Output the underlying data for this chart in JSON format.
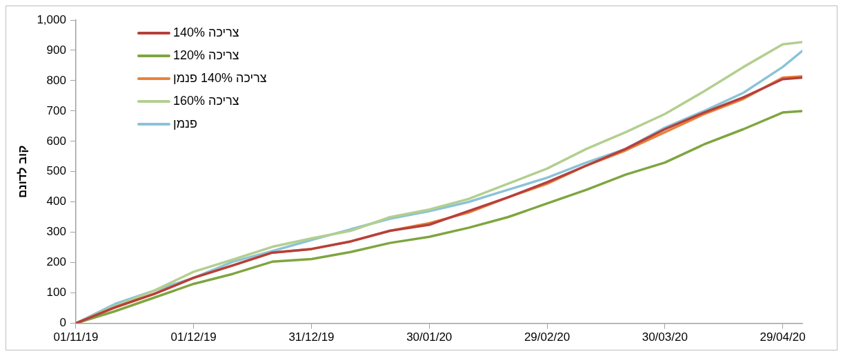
{
  "chart_data": {
    "type": "line",
    "ylabel": "קוב לדונם",
    "x": [
      "2019-11-01",
      "2019-11-11",
      "2019-11-21",
      "2019-12-01",
      "2019-12-11",
      "2019-12-21",
      "2019-12-31",
      "2020-01-10",
      "2020-01-20",
      "2020-01-30",
      "2020-02-09",
      "2020-02-19",
      "2020-02-29",
      "2020-03-10",
      "2020-03-20",
      "2020-03-30",
      "2020-04-09",
      "2020-04-19",
      "2020-04-29",
      "2020-05-04"
    ],
    "series": [
      {
        "name": "צריכה 140%",
        "color": "#b5403c",
        "values": [
          0,
          53,
          97,
          150,
          191,
          233,
          245,
          270,
          305,
          325,
          370,
          415,
          465,
          520,
          575,
          640,
          695,
          745,
          805,
          810
        ]
      },
      {
        "name": "צריכה 120%",
        "color": "#7fa53f",
        "values": [
          0,
          40,
          85,
          130,
          163,
          203,
          212,
          235,
          265,
          285,
          315,
          350,
          395,
          440,
          490,
          530,
          590,
          640,
          695,
          700
        ]
      },
      {
        "name": "צריכה 140% פנמן",
        "color": "#e8823a",
        "values": [
          0,
          52,
          97,
          150,
          191,
          233,
          245,
          270,
          305,
          330,
          365,
          415,
          460,
          520,
          570,
          630,
          690,
          740,
          810,
          814
        ]
      },
      {
        "name": "צריכה 160%",
        "color": "#b3cf8f",
        "values": [
          0,
          57,
          108,
          170,
          210,
          252,
          280,
          305,
          350,
          375,
          410,
          460,
          510,
          575,
          630,
          690,
          765,
          845,
          920,
          927
        ]
      },
      {
        "name": "פנמן",
        "color": "#8ac3d8",
        "values": [
          0,
          64,
          108,
          150,
          203,
          238,
          275,
          310,
          345,
          370,
          400,
          440,
          480,
          530,
          575,
          645,
          700,
          760,
          845,
          898
        ]
      }
    ],
    "xlim": [
      "2019-11-01",
      "2020-05-04"
    ],
    "xticks": [
      {
        "value": "2019-11-01",
        "label": "01/11/19"
      },
      {
        "value": "2019-12-01",
        "label": "01/12/19"
      },
      {
        "value": "2019-12-31",
        "label": "31/12/19"
      },
      {
        "value": "2020-01-30",
        "label": "30/01/20"
      },
      {
        "value": "2020-02-29",
        "label": "29/02/20"
      },
      {
        "value": "2020-03-30",
        "label": "30/03/20"
      },
      {
        "value": "2020-04-29",
        "label": "29/04/20"
      }
    ],
    "ylim": [
      0,
      1000
    ],
    "yticks": [
      0,
      100,
      200,
      300,
      400,
      500,
      600,
      700,
      800,
      900,
      {
        "value": 1000,
        "label": "1,000"
      }
    ],
    "grid": false,
    "legend": "top left",
    "marker": "none",
    "line_style": "solid"
  }
}
